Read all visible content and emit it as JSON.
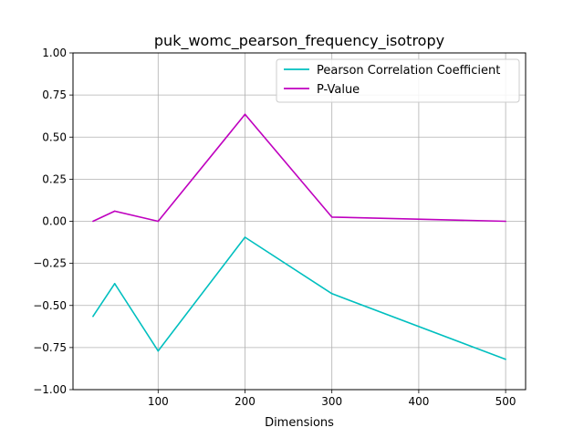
{
  "chart_data": {
    "type": "line",
    "title": "puk_womc_pearson_frequency_isotropy",
    "xlabel": "Dimensions",
    "ylabel": "",
    "x": [
      25,
      50,
      100,
      200,
      300,
      500
    ],
    "series": [
      {
        "name": "Pearson Correlation Coefficient",
        "color": "#00bfbf",
        "values": [
          -0.565,
          -0.37,
          -0.77,
          -0.095,
          -0.43,
          -0.82
        ]
      },
      {
        "name": "P-Value",
        "color": "#bf00bf",
        "values": [
          0.0,
          0.06,
          0.0,
          0.635,
          0.025,
          0.0
        ]
      }
    ],
    "xlim": [
      2,
      523
    ],
    "ylim": [
      -1.0,
      1.0
    ],
    "xticks": [
      100,
      200,
      300,
      400,
      500
    ],
    "yticks": [
      -1.0,
      -0.75,
      -0.5,
      -0.25,
      0.0,
      0.25,
      0.5,
      0.75,
      1.0
    ],
    "xtick_labels": [
      "100",
      "200",
      "300",
      "400",
      "500"
    ],
    "ytick_labels": [
      "−1.00",
      "−0.75",
      "−0.50",
      "−0.25",
      "0.00",
      "0.25",
      "0.50",
      "0.75",
      "1.00"
    ],
    "grid": true,
    "legend_position": "top-right"
  }
}
